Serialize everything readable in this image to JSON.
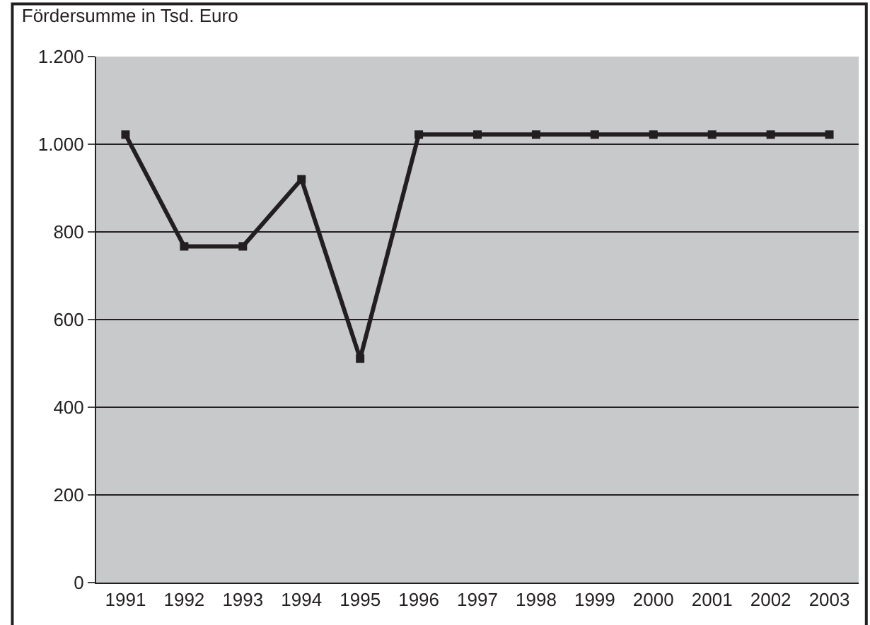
{
  "chart_data": {
    "type": "line",
    "title": "Fördersumme in Tsd. Euro",
    "categories": [
      "1991",
      "1992",
      "1993",
      "1994",
      "1995",
      "1996",
      "1997",
      "1998",
      "1999",
      "2000",
      "2001",
      "2002",
      "2003"
    ],
    "series": [
      {
        "color": "#231f20",
        "values": [
          1022,
          767,
          767,
          920,
          511,
          1022,
          1022,
          1022,
          1022,
          1022,
          1022,
          1022,
          1022
        ]
      }
    ],
    "ylim": [
      0,
      1200
    ],
    "yticks": [
      0,
      200,
      400,
      600,
      800,
      {
        "value": 1000,
        "label": "1.000"
      },
      {
        "value": 1200,
        "label": "1.200"
      }
    ],
    "grid": "y",
    "marker": "square",
    "line_style": "solid"
  }
}
